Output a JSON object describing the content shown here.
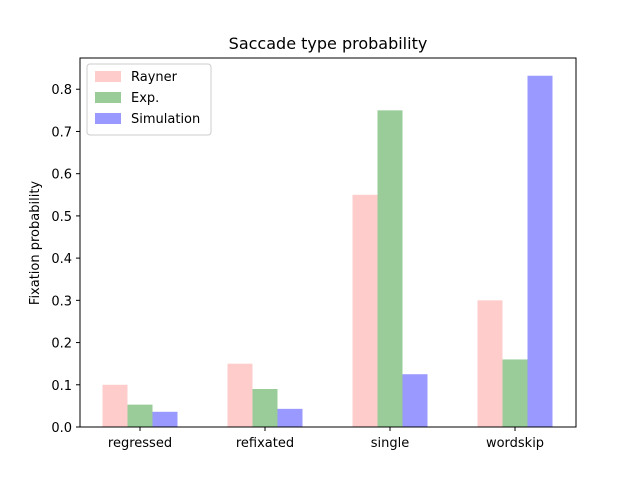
{
  "chart_data": {
    "type": "bar",
    "title": "Saccade type probability",
    "xlabel": "",
    "ylabel": "Fixation probability",
    "categories": [
      "regressed",
      "refixated",
      "single",
      "wordskip"
    ],
    "series": [
      {
        "name": "Rayner",
        "values": [
          0.1,
          0.15,
          0.55,
          0.3
        ],
        "color": "#ffcccc"
      },
      {
        "name": "Exp.",
        "values": [
          0.053,
          0.09,
          0.75,
          0.16
        ],
        "color": "#99cc99"
      },
      {
        "name": "Simulation",
        "values": [
          0.036,
          0.043,
          0.125,
          0.832
        ],
        "color": "#9999ff"
      }
    ],
    "ylim": [
      0,
      0.874
    ],
    "yticks": [
      0.0,
      0.1,
      0.2,
      0.3,
      0.4,
      0.5,
      0.6,
      0.7,
      0.8
    ],
    "ytick_labels": [
      "0.0",
      "0.1",
      "0.2",
      "0.3",
      "0.4",
      "0.5",
      "0.6",
      "0.7",
      "0.8"
    ],
    "grid": false,
    "legend_position": "top-left"
  }
}
